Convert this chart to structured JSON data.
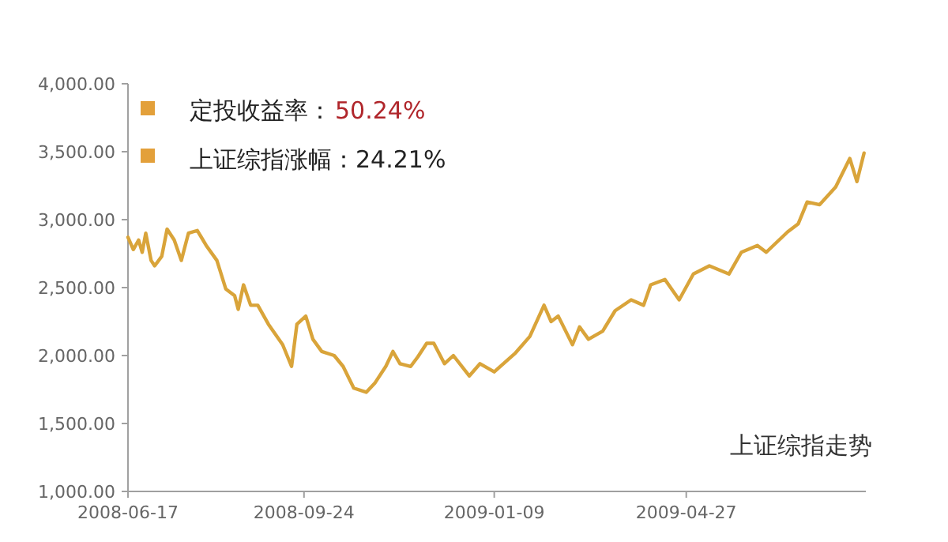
{
  "chart_data": {
    "type": "line",
    "annotations": [
      "定投收益率：",
      "50.24%",
      "上证综指涨幅：24.21%",
      "上证综指走势"
    ],
    "x": [
      "2008-06-17",
      "2008-06-20",
      "2008-06-23",
      "2008-06-25",
      "2008-06-27",
      "2008-06-30",
      "2008-07-02",
      "2008-07-06",
      "2008-07-09",
      "2008-07-13",
      "2008-07-17",
      "2008-07-21",
      "2008-07-26",
      "2008-07-31",
      "2008-08-06",
      "2008-08-11",
      "2008-08-16",
      "2008-08-18",
      "2008-08-21",
      "2008-08-25",
      "2008-08-29",
      "2008-09-04",
      "2008-09-12",
      "2008-09-17",
      "2008-09-20",
      "2008-09-25",
      "2008-09-29",
      "2008-10-04",
      "2008-10-11",
      "2008-10-16",
      "2008-10-22",
      "2008-10-29",
      "2008-11-03",
      "2008-11-09",
      "2008-11-13",
      "2008-11-17",
      "2008-11-23",
      "2008-11-27",
      "2008-12-02",
      "2008-12-06",
      "2008-12-12",
      "2008-12-17",
      "2008-12-26",
      "2009-01-01",
      "2009-01-09",
      "2009-01-21",
      "2009-01-29",
      "2009-02-06",
      "2009-02-10",
      "2009-02-14",
      "2009-02-22",
      "2009-02-26",
      "2009-03-03",
      "2009-03-11",
      "2009-03-18",
      "2009-03-27",
      "2009-04-03",
      "2009-04-07",
      "2009-04-15",
      "2009-04-23",
      "2009-05-01",
      "2009-05-10",
      "2009-05-21",
      "2009-05-28",
      "2009-06-06",
      "2009-06-11",
      "2009-06-23",
      "2009-06-29",
      "2009-07-04",
      "2009-07-11",
      "2009-07-20",
      "2009-07-28",
      "2009-08-01",
      "2009-08-05"
    ],
    "series": [
      {
        "color": "#d9a43a",
        "values": [
          2870,
          2780,
          2850,
          2760,
          2900,
          2700,
          2660,
          2730,
          2930,
          2850,
          2700,
          2900,
          2920,
          2810,
          2700,
          2490,
          2440,
          2340,
          2520,
          2370,
          2370,
          2230,
          2080,
          1920,
          2230,
          2290,
          2120,
          2030,
          2000,
          1920,
          1760,
          1730,
          1800,
          1920,
          2030,
          1940,
          1920,
          1990,
          2090,
          2090,
          1940,
          2000,
          1850,
          1940,
          1880,
          2020,
          2140,
          2370,
          2250,
          2290,
          2080,
          2210,
          2120,
          2180,
          2330,
          2410,
          2370,
          2520,
          2560,
          2410,
          2600,
          2660,
          2600,
          2760,
          2810,
          2760,
          2910,
          2970,
          3130,
          3110,
          3240,
          3450,
          3280,
          3490
        ]
      }
    ],
    "xlim": [
      "2008-06-17",
      "2009-08-06"
    ],
    "xticks": [
      {
        "value": "2008-06-17",
        "label": "2008-06-17"
      },
      {
        "value": "2008-09-24",
        "label": "2008-09-24"
      },
      {
        "value": "2009-01-09",
        "label": "2009-01-09"
      },
      {
        "value": "2009-04-27",
        "label": "2009-04-27"
      }
    ],
    "ylim": [
      1000,
      4000
    ],
    "yticks": [
      {
        "value": 1000,
        "label": "1,000.00"
      },
      {
        "value": 1500,
        "label": "1,500.00"
      },
      {
        "value": 2000,
        "label": "2,000.00"
      },
      {
        "value": 2500,
        "label": "2,500.00"
      },
      {
        "value": 3000,
        "label": "3,000.00"
      },
      {
        "value": 3500,
        "label": "3,500.00"
      },
      {
        "value": 4000,
        "label": "4,000.00"
      }
    ],
    "marker": "none",
    "line_style": "solid"
  }
}
